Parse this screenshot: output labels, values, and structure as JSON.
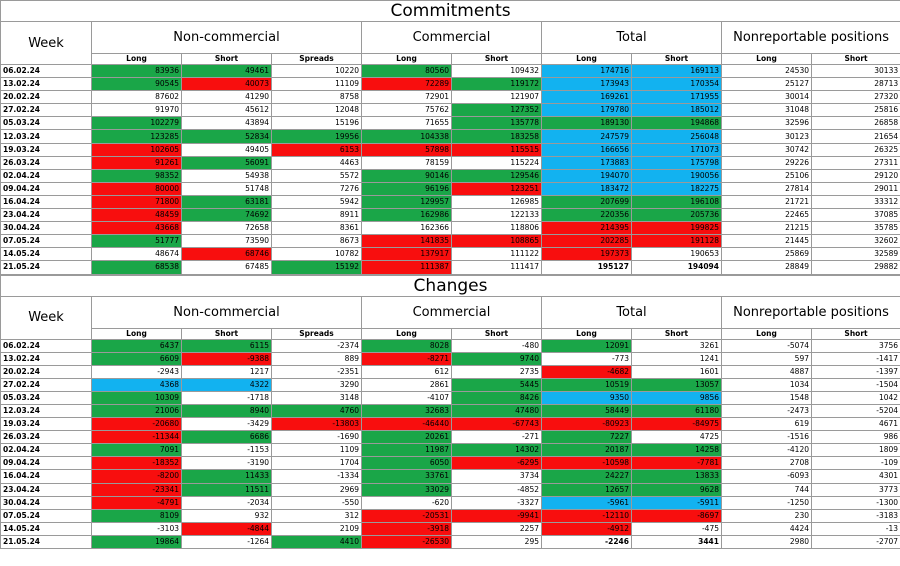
{
  "colors": {
    "green": "#1aa648",
    "red": "#f80e0e",
    "blue": "#12b2f0"
  },
  "commitments": {
    "title": "Commitments",
    "week_label": "Week",
    "groups": [
      "Non-commercial",
      "Commercial",
      "Total",
      "Nonreportable positions"
    ],
    "subheaders": [
      "Long",
      "Short",
      "Spreads",
      "Long",
      "Short",
      "Long",
      "Short",
      "Long",
      "Short"
    ],
    "rows": [
      {
        "week": "06.02.24",
        "v": [
          "83936",
          "49461",
          "10220",
          "80560",
          "109432",
          "174716",
          "169113",
          "24530",
          "30133"
        ],
        "c": [
          "g",
          "g",
          "",
          "g",
          "",
          "b",
          "b",
          "",
          ""
        ]
      },
      {
        "week": "13.02.24",
        "v": [
          "90545",
          "40073",
          "11109",
          "72289",
          "119172",
          "173943",
          "170354",
          "25127",
          "28713"
        ],
        "c": [
          "g",
          "r",
          "",
          "r",
          "g",
          "b",
          "b",
          "",
          ""
        ]
      },
      {
        "week": "20.02.24",
        "v": [
          "87602",
          "41290",
          "8758",
          "72901",
          "121907",
          "169261",
          "171955",
          "30014",
          "27320"
        ],
        "c": [
          "",
          "",
          "",
          "",
          "",
          "b",
          "b",
          "",
          ""
        ]
      },
      {
        "week": "27.02.24",
        "v": [
          "91970",
          "45612",
          "12048",
          "75762",
          "127352",
          "179780",
          "185012",
          "31048",
          "25816"
        ],
        "c": [
          "",
          "",
          "",
          "",
          "g",
          "b",
          "b",
          "",
          ""
        ]
      },
      {
        "week": "05.03.24",
        "v": [
          "102279",
          "43894",
          "15196",
          "71655",
          "135778",
          "189130",
          "194868",
          "32596",
          "26858"
        ],
        "c": [
          "g",
          "",
          "",
          "",
          "g",
          "g",
          "g",
          "",
          ""
        ]
      },
      {
        "week": "12.03.24",
        "v": [
          "123285",
          "52834",
          "19956",
          "104338",
          "183258",
          "247579",
          "256048",
          "30123",
          "21654"
        ],
        "c": [
          "g",
          "g",
          "g",
          "g",
          "g",
          "b",
          "b",
          "",
          ""
        ]
      },
      {
        "week": "19.03.24",
        "v": [
          "102605",
          "49405",
          "6153",
          "57898",
          "115515",
          "166656",
          "171073",
          "30742",
          "26325"
        ],
        "c": [
          "r",
          "",
          "r",
          "r",
          "r",
          "b",
          "b",
          "",
          ""
        ]
      },
      {
        "week": "26.03.24",
        "v": [
          "91261",
          "56091",
          "4463",
          "78159",
          "115224",
          "173883",
          "175798",
          "29226",
          "27311"
        ],
        "c": [
          "r",
          "g",
          "",
          "",
          "",
          "b",
          "b",
          "",
          ""
        ]
      },
      {
        "week": "02.04.24",
        "v": [
          "98352",
          "54938",
          "5572",
          "90146",
          "129546",
          "194070",
          "190056",
          "25106",
          "29120"
        ],
        "c": [
          "g",
          "",
          "",
          "g",
          "g",
          "b",
          "b",
          "",
          ""
        ]
      },
      {
        "week": "09.04.24",
        "v": [
          "80000",
          "51748",
          "7276",
          "96196",
          "123251",
          "183472",
          "182275",
          "27814",
          "29011"
        ],
        "c": [
          "r",
          "",
          "",
          "g",
          "r",
          "b",
          "b",
          "",
          ""
        ]
      },
      {
        "week": "16.04.24",
        "v": [
          "71800",
          "63181",
          "5942",
          "129957",
          "126985",
          "207699",
          "196108",
          "21721",
          "33312"
        ],
        "c": [
          "r",
          "g",
          "",
          "g",
          "",
          "g",
          "g",
          "",
          ""
        ]
      },
      {
        "week": "23.04.24",
        "v": [
          "48459",
          "74692",
          "8911",
          "162986",
          "122133",
          "220356",
          "205736",
          "22465",
          "37085"
        ],
        "c": [
          "r",
          "g",
          "",
          "g",
          "",
          "g",
          "g",
          "",
          ""
        ]
      },
      {
        "week": "30.04.24",
        "v": [
          "43668",
          "72658",
          "8361",
          "162366",
          "118806",
          "214395",
          "199825",
          "21215",
          "35785"
        ],
        "c": [
          "r",
          "",
          "",
          "",
          "",
          "r",
          "r",
          "",
          ""
        ]
      },
      {
        "week": "07.05.24",
        "v": [
          "51777",
          "73590",
          "8673",
          "141835",
          "108865",
          "202285",
          "191128",
          "21445",
          "32602"
        ],
        "c": [
          "g",
          "",
          "",
          "r",
          "r",
          "r",
          "r",
          "",
          ""
        ]
      },
      {
        "week": "14.05.24",
        "v": [
          "48674",
          "68746",
          "10782",
          "137917",
          "111122",
          "197373",
          "190653",
          "25869",
          "32589"
        ],
        "c": [
          "",
          "r",
          "",
          "r",
          "",
          "r",
          "",
          "",
          ""
        ]
      },
      {
        "week": "21.05.24",
        "v": [
          "68538",
          "67485",
          "15192",
          "111387",
          "111417",
          "195127",
          "194094",
          "28849",
          "29882"
        ],
        "c": [
          "g",
          "",
          "g",
          "r",
          "",
          "",
          "",
          "",
          ""
        ],
        "bold": [
          5,
          6
        ]
      }
    ]
  },
  "changes": {
    "title": "Changes",
    "week_label": "Week",
    "groups": [
      "Non-commercial",
      "Commercial",
      "Total",
      "Nonreportable positions"
    ],
    "subheaders": [
      "Long",
      "Short",
      "Spreads",
      "Long",
      "Short",
      "Long",
      "Short",
      "Long",
      "Short"
    ],
    "rows": [
      {
        "week": "06.02.24",
        "v": [
          "6437",
          "6115",
          "-2374",
          "8028",
          "-480",
          "12091",
          "3261",
          "-5074",
          "3756"
        ],
        "c": [
          "g",
          "g",
          "",
          "g",
          "",
          "g",
          "",
          "",
          ""
        ]
      },
      {
        "week": "13.02.24",
        "v": [
          "6609",
          "-9388",
          "889",
          "-8271",
          "9740",
          "-773",
          "1241",
          "597",
          "-1417"
        ],
        "c": [
          "g",
          "r",
          "",
          "r",
          "g",
          "",
          "",
          "",
          ""
        ]
      },
      {
        "week": "20.02.24",
        "v": [
          "-2943",
          "1217",
          "-2351",
          "612",
          "2735",
          "-4682",
          "1601",
          "4887",
          "-1397"
        ],
        "c": [
          "",
          "",
          "",
          "",
          "",
          "r",
          "",
          "",
          ""
        ]
      },
      {
        "week": "27.02.24",
        "v": [
          "4368",
          "4322",
          "3290",
          "2861",
          "5445",
          "10519",
          "13057",
          "1034",
          "-1504"
        ],
        "c": [
          "b",
          "b",
          "",
          "",
          "g",
          "g",
          "g",
          "",
          ""
        ]
      },
      {
        "week": "05.03.24",
        "v": [
          "10309",
          "-1718",
          "3148",
          "-4107",
          "8426",
          "9350",
          "9856",
          "1548",
          "1042"
        ],
        "c": [
          "g",
          "",
          "",
          "",
          "g",
          "b",
          "b",
          "",
          ""
        ]
      },
      {
        "week": "12.03.24",
        "v": [
          "21006",
          "8940",
          "4760",
          "32683",
          "47480",
          "58449",
          "61180",
          "-2473",
          "-5204"
        ],
        "c": [
          "g",
          "g",
          "g",
          "g",
          "g",
          "g",
          "g",
          "",
          ""
        ]
      },
      {
        "week": "19.03.24",
        "v": [
          "-20680",
          "-3429",
          "-13803",
          "-46440",
          "-67743",
          "-80923",
          "-84975",
          "619",
          "4671"
        ],
        "c": [
          "r",
          "",
          "r",
          "r",
          "r",
          "r",
          "r",
          "",
          ""
        ]
      },
      {
        "week": "26.03.24",
        "v": [
          "-11344",
          "6686",
          "-1690",
          "20261",
          "-271",
          "7227",
          "4725",
          "-1516",
          "986"
        ],
        "c": [
          "r",
          "g",
          "",
          "g",
          "",
          "g",
          "",
          "",
          ""
        ]
      },
      {
        "week": "02.04.24",
        "v": [
          "7091",
          "-1153",
          "1109",
          "11987",
          "14302",
          "20187",
          "14258",
          "-4120",
          "1809"
        ],
        "c": [
          "g",
          "",
          "",
          "g",
          "g",
          "g",
          "g",
          "",
          ""
        ]
      },
      {
        "week": "09.04.24",
        "v": [
          "-18352",
          "-3190",
          "1704",
          "6050",
          "-6295",
          "-10598",
          "-7781",
          "2708",
          "-109"
        ],
        "c": [
          "r",
          "",
          "",
          "g",
          "r",
          "r",
          "r",
          "",
          ""
        ]
      },
      {
        "week": "16.04.24",
        "v": [
          "-8200",
          "11433",
          "-1334",
          "33761",
          "3734",
          "24227",
          "13833",
          "-6093",
          "4301"
        ],
        "c": [
          "r",
          "g",
          "",
          "g",
          "",
          "g",
          "g",
          "",
          ""
        ]
      },
      {
        "week": "23.04.24",
        "v": [
          "-23341",
          "11511",
          "2969",
          "33029",
          "-4852",
          "12657",
          "9628",
          "744",
          "3773"
        ],
        "c": [
          "r",
          "g",
          "",
          "g",
          "",
          "g",
          "g",
          "",
          ""
        ]
      },
      {
        "week": "30.04.24",
        "v": [
          "-4791",
          "-2034",
          "-550",
          "-620",
          "-3327",
          "-5961",
          "-5911",
          "-1250",
          "-1300"
        ],
        "c": [
          "r",
          "",
          "",
          "",
          "",
          "b",
          "b",
          "",
          ""
        ]
      },
      {
        "week": "07.05.24",
        "v": [
          "8109",
          "932",
          "312",
          "-20531",
          "-9941",
          "-12110",
          "-8697",
          "230",
          "-3183"
        ],
        "c": [
          "g",
          "",
          "",
          "r",
          "r",
          "r",
          "r",
          "",
          ""
        ]
      },
      {
        "week": "14.05.24",
        "v": [
          "-3103",
          "-4844",
          "2109",
          "-3918",
          "2257",
          "-4912",
          "-475",
          "4424",
          "-13"
        ],
        "c": [
          "",
          "r",
          "",
          "r",
          "",
          "r",
          "",
          "",
          ""
        ]
      },
      {
        "week": "21.05.24",
        "v": [
          "19864",
          "-1264",
          "4410",
          "-26530",
          "295",
          "-2246",
          "3441",
          "2980",
          "-2707"
        ],
        "c": [
          "g",
          "",
          "g",
          "r",
          "",
          "",
          "",
          "",
          ""
        ],
        "bold": [
          5,
          6
        ]
      }
    ]
  }
}
